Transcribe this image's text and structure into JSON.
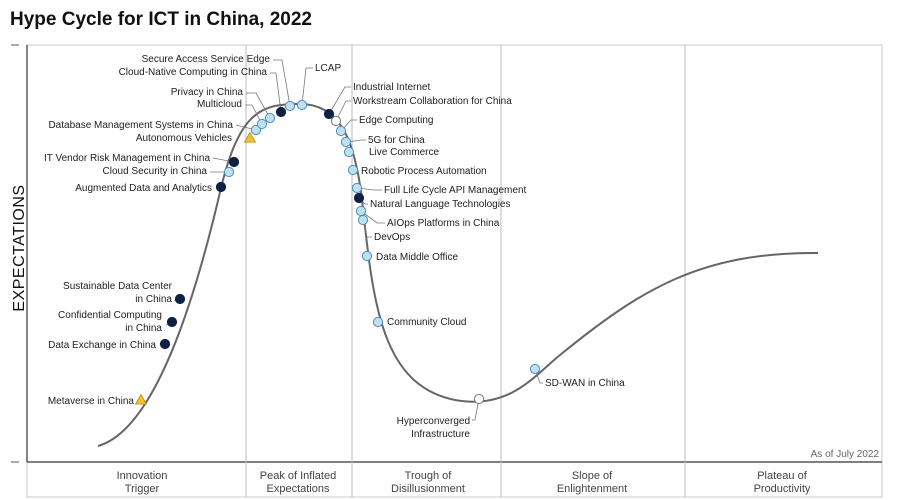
{
  "chart_data": {
    "type": "line",
    "title": "Hype Cycle for ICT in China, 2022",
    "xlabel": "",
    "ylabel": "EXPECTATIONS",
    "note": "As of July 2022",
    "phases": [
      {
        "name": "Innovation Trigger",
        "lines": [
          "Innovation",
          "Trigger"
        ]
      },
      {
        "name": "Peak of Inflated Expectations",
        "lines": [
          "Peak of Inflated",
          "Expectations"
        ]
      },
      {
        "name": "Trough of Disillusionment",
        "lines": [
          "Trough of",
          "Disillusionment"
        ]
      },
      {
        "name": "Slope of Enlightenment",
        "lines": [
          "Slope of",
          "Enlightenment"
        ]
      },
      {
        "name": "Plateau of Productivity",
        "lines": [
          "Plateau of",
          "Productivity"
        ]
      }
    ],
    "legend_types": {
      "navy": "dark filled circle",
      "light": "light blue circle",
      "white": "white circle",
      "triangle": "yellow triangle"
    },
    "colors": {
      "navy": "#0d2145",
      "light": "#bfe0f2",
      "white": "#ffffff",
      "triangle": "#f2c12e",
      "curve": "#666666"
    },
    "technologies": [
      {
        "name": "Metaverse in China",
        "marker": "triangle",
        "lines": [
          "Metaverse in China"
        ]
      },
      {
        "name": "Data Exchange in China",
        "marker": "navy",
        "lines": [
          "Data Exchange in China"
        ]
      },
      {
        "name": "Confidential Computing in China",
        "marker": "navy",
        "lines": [
          "Confidential Computing",
          "in China"
        ]
      },
      {
        "name": "Sustainable Data Center in China",
        "marker": "navy",
        "lines": [
          "Sustainable Data Center",
          "in China"
        ]
      },
      {
        "name": "Augmented Data and Analytics",
        "marker": "navy",
        "lines": [
          "Augmented Data and Analytics"
        ]
      },
      {
        "name": "Cloud Security in China",
        "marker": "light",
        "lines": [
          "Cloud Security in China"
        ]
      },
      {
        "name": "IT Vendor Risk Management in China",
        "marker": "navy",
        "lines": [
          "IT Vendor Risk Management in China"
        ]
      },
      {
        "name": "Autonomous Vehicles",
        "marker": "triangle",
        "lines": [
          "Autonomous Vehicles"
        ]
      },
      {
        "name": "Database Management Systems in China",
        "marker": "light",
        "lines": [
          "Database Management Systems in China"
        ]
      },
      {
        "name": "Multicloud",
        "marker": "light",
        "lines": [
          "Multicloud"
        ]
      },
      {
        "name": "Privacy in China",
        "marker": "light",
        "lines": [
          "Privacy in China"
        ]
      },
      {
        "name": "Cloud-Native Computing in China",
        "marker": "navy",
        "lines": [
          "Cloud-Native Computing in China"
        ]
      },
      {
        "name": "Secure Access Service Edge",
        "marker": "light",
        "lines": [
          "Secure Access Service Edge"
        ]
      },
      {
        "name": "LCAP",
        "marker": "light",
        "lines": [
          "LCAP"
        ]
      },
      {
        "name": "Industrial Internet",
        "marker": "navy",
        "lines": [
          "Industrial Internet"
        ]
      },
      {
        "name": "Workstream Collaboration for China",
        "marker": "white",
        "lines": [
          "Workstream Collaboration for China"
        ]
      },
      {
        "name": "Edge Computing",
        "marker": "light",
        "lines": [
          "Edge Computing"
        ]
      },
      {
        "name": "5G for China",
        "marker": "light",
        "lines": [
          "5G for China"
        ]
      },
      {
        "name": "Live Commerce",
        "marker": "light",
        "lines": [
          "Live Commerce"
        ]
      },
      {
        "name": "Robotic Process Automation",
        "marker": "light",
        "lines": [
          "Robotic Process Automation"
        ]
      },
      {
        "name": "Full Life Cycle API Management",
        "marker": "light",
        "lines": [
          "Full Life Cycle API Management"
        ]
      },
      {
        "name": "Natural Language Technologies",
        "marker": "navy",
        "lines": [
          "Natural Language Technologies"
        ]
      },
      {
        "name": "AIOps Platforms in China",
        "marker": "light",
        "lines": [
          "AIOps Platforms in China"
        ]
      },
      {
        "name": "DevOps",
        "marker": "light",
        "lines": [
          "DevOps"
        ]
      },
      {
        "name": "Data Middle Office",
        "marker": "light",
        "lines": [
          "Data Middle Office"
        ]
      },
      {
        "name": "Community Cloud",
        "marker": "light",
        "lines": [
          "Community Cloud"
        ]
      },
      {
        "name": "Hyperconverged Infrastructure",
        "marker": "white",
        "lines": [
          "Hyperconverged",
          "Infrastructure"
        ]
      },
      {
        "name": "SD-WAN in China",
        "marker": "light",
        "lines": [
          "SD-WAN in China"
        ]
      }
    ]
  }
}
